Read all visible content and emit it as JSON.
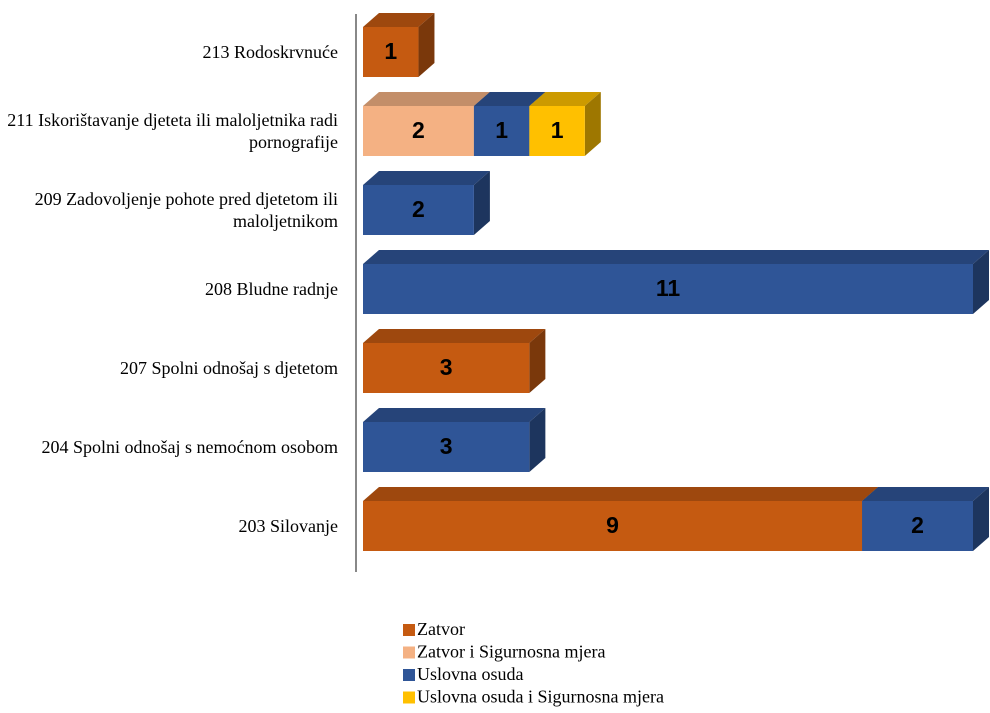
{
  "chart_data": {
    "type": "bar",
    "orientation": "horizontal",
    "stacked": true,
    "three_d": true,
    "categories": [
      "213 Rodoskrvnuće",
      "211 Iskorištavanje djeteta ili maloljetnika radi pornografije",
      "209 Zadovoljenje pohote pred djetetom ili maloljetnikom",
      "208 Bludne radnje",
      "207 Spolni odnošaj s djetetom",
      "204 Spolni odnošaj s nemoćnom osobom",
      "203 Silovanje"
    ],
    "series": [
      {
        "name": "Zatvor",
        "color": "#c55a11",
        "values": [
          1,
          null,
          null,
          null,
          3,
          null,
          9
        ]
      },
      {
        "name": "Zatvor i Sigurnosna mjera",
        "color": "#f4b183",
        "values": [
          null,
          2,
          null,
          null,
          null,
          null,
          null
        ]
      },
      {
        "name": "Uslovna osuda",
        "color": "#2f5597",
        "values": [
          null,
          1,
          2,
          11,
          null,
          3,
          2
        ]
      },
      {
        "name": "Uslovna osuda i Sigurnosna mjera",
        "color": "#ffc000",
        "values": [
          null,
          1,
          null,
          null,
          null,
          null,
          null
        ]
      }
    ],
    "xlim": [
      0,
      11
    ],
    "legend": "bottom"
  }
}
